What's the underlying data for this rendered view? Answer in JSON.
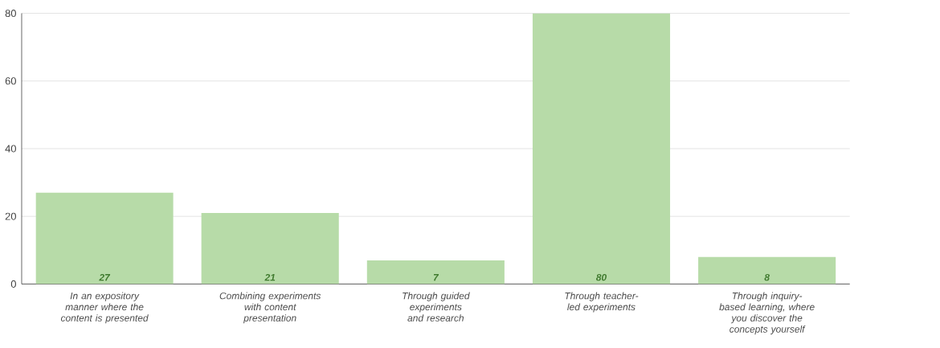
{
  "chart_data": {
    "type": "bar",
    "categories": [
      "In an expository manner where the content is presented",
      "Combining experiments with content presentation",
      "Through guided experiments and research",
      "Through teacher-led experiments",
      "Through inquiry-based learning, where you discover the concepts yourself"
    ],
    "values": [
      27,
      21,
      7,
      80,
      8
    ],
    "color": "#b7dba8",
    "ylim": [
      0,
      80
    ],
    "yticks": [
      0,
      20,
      40,
      60,
      80
    ],
    "grid": "y",
    "data_labels": true
  }
}
